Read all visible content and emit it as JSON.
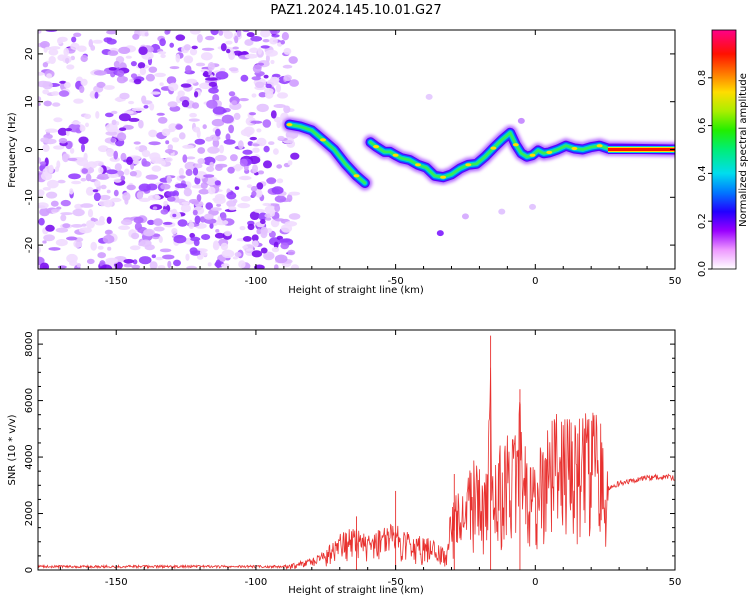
{
  "title": "PAZ1.2024.145.10.01.G27",
  "chart_data": [
    {
      "type": "heatmap",
      "xlabel": "Height of straight line (km)",
      "ylabel": "Frequency (Hz)",
      "xlim": [
        -178,
        50
      ],
      "ylim": [
        -25,
        25
      ],
      "xticks": [
        -150,
        -100,
        -50,
        0,
        50
      ],
      "yticks": [
        -20,
        -10,
        0,
        10,
        20
      ],
      "noise_region_x": [
        -178,
        -86
      ],
      "ridge": {
        "x": [
          -88,
          -84,
          -80,
          -76,
          -72,
          -68,
          -64,
          -61,
          -59,
          -57,
          -54,
          -52,
          -50,
          -48,
          -45,
          -42,
          -39,
          -36,
          -33,
          -30,
          -27,
          -24,
          -21,
          -18,
          -15,
          -12,
          -9,
          -7,
          -5,
          -3,
          -1,
          1,
          3,
          5,
          8,
          11,
          14,
          17,
          20,
          23,
          26,
          50
        ],
        "y": [
          5.2,
          4.8,
          4.0,
          2.0,
          0.0,
          -3.0,
          -5.5,
          -7.0,
          1.5,
          0.6,
          -0.5,
          -0.5,
          -1.2,
          -1.8,
          -2.2,
          -3.2,
          -3.8,
          -5.5,
          -5.8,
          -5.2,
          -4.0,
          -3.2,
          -3.0,
          -1.5,
          0.3,
          2.0,
          3.5,
          1.0,
          -0.8,
          -1.5,
          -1.2,
          -0.2,
          -0.8,
          -0.6,
          0.0,
          0.8,
          0.2,
          0.0,
          0.5,
          0.8,
          0.2,
          0.0
        ]
      },
      "colorbar": {
        "label": "Normalized spectral amplitude",
        "ticks": [
          0.0,
          0.2,
          0.4,
          0.6,
          0.8
        ],
        "range": [
          0,
          1
        ]
      }
    },
    {
      "type": "line",
      "xlabel": "Height of straight line (km)",
      "ylabel": "SNR (10 * v/v)",
      "xlim": [
        -178,
        50
      ],
      "ylim": [
        0,
        8500
      ],
      "xticks": [
        -150,
        -100,
        -50,
        0,
        50
      ],
      "yticks": [
        0,
        2000,
        4000,
        6000,
        8000
      ],
      "series": [
        {
          "color": "#e8312f",
          "envelope": {
            "x": [
              -178,
              -90,
              -85,
              -80,
              -75,
              -70,
              -65,
              -60,
              -55,
              -50,
              -45,
              -40,
              -35,
              -32,
              -30,
              -27,
              -24,
              -21,
              -19,
              -17,
              -16,
              -15,
              -13,
              -11,
              -9,
              -7,
              -6,
              -5,
              -3,
              -1,
              1,
              3,
              5,
              8,
              11,
              14,
              17,
              20,
              23,
              25,
              26,
              30,
              35,
              40,
              45,
              50
            ],
            "y": [
              150,
              150,
              250,
              400,
              700,
              1200,
              1400,
              1100,
              1400,
              1500,
              1200,
              1100,
              900,
              600,
              2200,
              2800,
              3300,
              3800,
              3000,
              3200,
              8300,
              3100,
              4000,
              4200,
              4600,
              5200,
              6300,
              4800,
              3900,
              3600,
              3800,
              4200,
              4700,
              5100,
              4900,
              5100,
              5000,
              5200,
              5300,
              5200,
              2900,
              3100,
              3200,
              3300,
              3350,
              3300
            ]
          },
          "spikes": [
            {
              "x": -16,
              "y": 8300
            },
            {
              "x": -5.5,
              "y": 6400
            },
            {
              "x": -50,
              "y": 2800
            },
            {
              "x": -64,
              "y": 1900
            },
            {
              "x": -29,
              "y": 3400
            }
          ]
        }
      ]
    }
  ]
}
